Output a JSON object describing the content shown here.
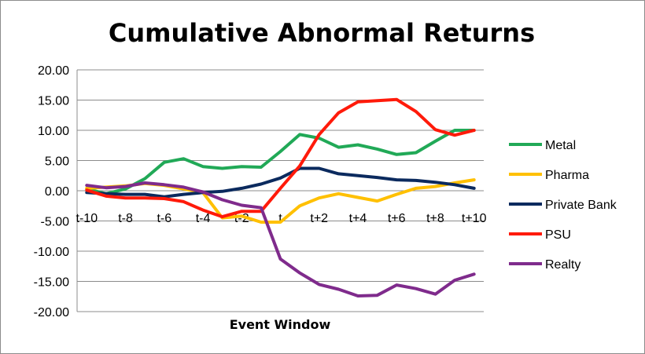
{
  "chart_data": {
    "type": "line",
    "title": "Cumulative Abnormal Returns",
    "xlabel": "Event Window",
    "ylabel": "",
    "ylim": [
      -20,
      20
    ],
    "ytick_step": 5,
    "grid": "horizontal",
    "legend_position": "right",
    "x": [
      "t-10",
      "t-9",
      "t-8",
      "t-7",
      "t-6",
      "t-5",
      "t-4",
      "t-3",
      "t-2",
      "t-1",
      "t",
      "t+1",
      "t+2",
      "t+3",
      "t+4",
      "t+5",
      "t+6",
      "t+7",
      "t+8",
      "t+9",
      "t+10"
    ],
    "xtick_labels": [
      "t-10",
      "t-8",
      "t-6",
      "t-4",
      "t-2",
      "t",
      "t+2",
      "t+4",
      "t+6",
      "t+8",
      "t+10"
    ],
    "series": [
      {
        "name": "Metal",
        "color": "#21a957",
        "values": [
          0.3,
          -0.5,
          0.3,
          2.0,
          4.7,
          5.3,
          4.0,
          3.7,
          4.0,
          3.9,
          6.5,
          9.3,
          8.7,
          7.2,
          7.6,
          6.9,
          6.0,
          6.3,
          8.2,
          10.0,
          10.0
        ]
      },
      {
        "name": "Pharma",
        "color": "#ffc000",
        "values": [
          0.4,
          0.6,
          0.8,
          1.2,
          0.9,
          0.3,
          -0.3,
          -4.5,
          -4.2,
          -5.2,
          -5.2,
          -2.5,
          -1.2,
          -0.5,
          -1.1,
          -1.7,
          -0.6,
          0.4,
          0.7,
          1.3,
          1.8
        ]
      },
      {
        "name": "Private Bank",
        "color": "#0b2a5e",
        "values": [
          -0.3,
          -0.5,
          -0.6,
          -0.6,
          -1.0,
          -0.6,
          -0.3,
          -0.1,
          0.4,
          1.1,
          2.1,
          3.7,
          3.7,
          2.8,
          2.5,
          2.2,
          1.8,
          1.7,
          1.4,
          1.0,
          0.4
        ]
      },
      {
        "name": "PSU",
        "color": "#ff1a0a",
        "values": [
          0.1,
          -0.9,
          -1.2,
          -1.2,
          -1.3,
          -1.8,
          -3.2,
          -4.3,
          -3.4,
          -3.4,
          0.4,
          4.1,
          9.3,
          12.9,
          14.7,
          14.9,
          15.1,
          13.1,
          10.1,
          9.2,
          10.0
        ]
      },
      {
        "name": "Realty",
        "color": "#7f2b8c",
        "values": [
          0.9,
          0.5,
          0.7,
          1.3,
          1.0,
          0.6,
          -0.2,
          -1.5,
          -2.4,
          -2.8,
          -11.3,
          -13.6,
          -15.5,
          -16.3,
          -17.4,
          -17.3,
          -15.6,
          -16.2,
          -17.1,
          -14.8,
          -13.8
        ]
      }
    ]
  }
}
